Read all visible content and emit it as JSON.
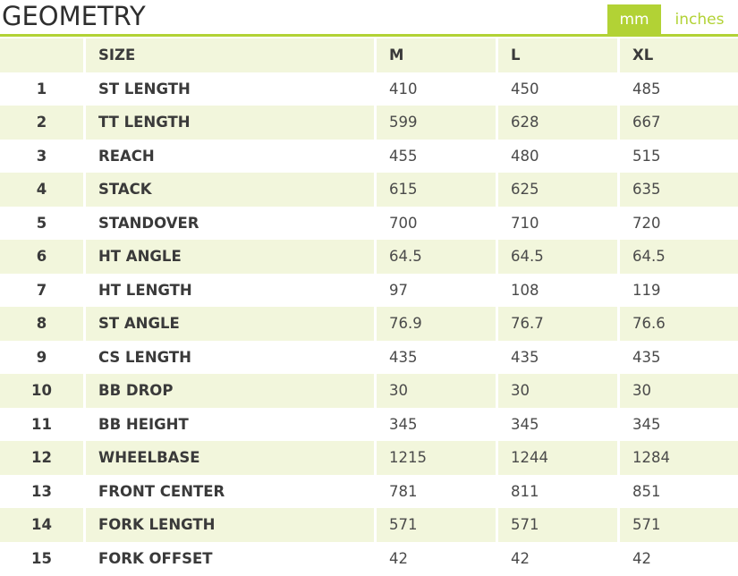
{
  "header": {
    "title": "GEOMETRY",
    "units": {
      "mm_label": "mm",
      "inches_label": "inches",
      "selected": "mm"
    }
  },
  "colors": {
    "accent": "#b2d235",
    "row_shade": "#f2f6dc"
  },
  "table": {
    "columns": [
      "",
      "SIZE",
      "M",
      "L",
      "XL"
    ],
    "rows": [
      {
        "num": "1",
        "label": "ST LENGTH",
        "m": "410",
        "l": "450",
        "xl": "485"
      },
      {
        "num": "2",
        "label": "TT LENGTH",
        "m": "599",
        "l": "628",
        "xl": "667"
      },
      {
        "num": "3",
        "label": "REACH",
        "m": "455",
        "l": "480",
        "xl": "515"
      },
      {
        "num": "4",
        "label": "STACK",
        "m": "615",
        "l": "625",
        "xl": "635"
      },
      {
        "num": "5",
        "label": "STANDOVER",
        "m": "700",
        "l": "710",
        "xl": "720"
      },
      {
        "num": "6",
        "label": "HT ANGLE",
        "m": "64.5",
        "l": "64.5",
        "xl": "64.5"
      },
      {
        "num": "7",
        "label": "HT LENGTH",
        "m": "97",
        "l": "108",
        "xl": "119"
      },
      {
        "num": "8",
        "label": "ST ANGLE",
        "m": "76.9",
        "l": "76.7",
        "xl": "76.6"
      },
      {
        "num": "9",
        "label": "CS LENGTH",
        "m": "435",
        "l": "435",
        "xl": "435"
      },
      {
        "num": "10",
        "label": "BB DROP",
        "m": "30",
        "l": "30",
        "xl": "30"
      },
      {
        "num": "11",
        "label": "BB HEIGHT",
        "m": "345",
        "l": "345",
        "xl": "345"
      },
      {
        "num": "12",
        "label": "WHEELBASE",
        "m": "1215",
        "l": "1244",
        "xl": "1284"
      },
      {
        "num": "13",
        "label": "FRONT CENTER",
        "m": "781",
        "l": "811",
        "xl": "851"
      },
      {
        "num": "14",
        "label": "FORK LENGTH",
        "m": "571",
        "l": "571",
        "xl": "571"
      },
      {
        "num": "15",
        "label": "FORK OFFSET",
        "m": "42",
        "l": "42",
        "xl": "42"
      }
    ]
  }
}
